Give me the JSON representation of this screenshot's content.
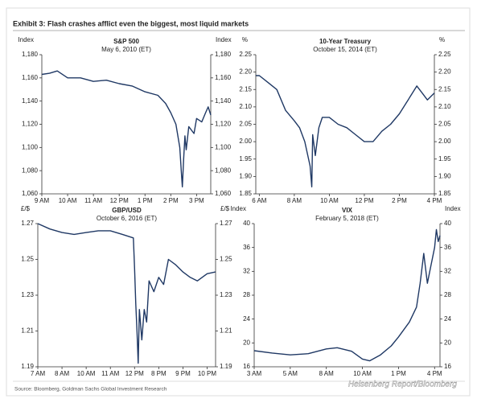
{
  "title": "Exhibit 3: Flash crashes afflict even the biggest, most liquid markets",
  "source": "Source: Bloomberg, Goldman Sachs Global Investment Research",
  "watermark": "Heisenberg Report/Bloomberg",
  "chart_data": [
    {
      "type": "line",
      "title": "S&P 500",
      "subtitle": "May 6, 2010 (ET)",
      "y_label": "Index",
      "color": "#1f3864",
      "x": [
        9,
        9.3,
        9.6,
        10,
        10.5,
        11,
        11.5,
        12,
        12.5,
        13,
        13.5,
        13.8,
        14,
        14.2,
        14.35,
        14.42,
        14.45,
        14.5,
        14.55,
        14.6,
        14.7,
        14.9,
        15,
        15.2,
        15.35,
        15.45,
        15.55
      ],
      "values": [
        1163,
        1164,
        1166,
        1160,
        1160,
        1157,
        1158,
        1155,
        1153,
        1148,
        1145,
        1138,
        1130,
        1120,
        1100,
        1075,
        1066,
        1090,
        1110,
        1098,
        1118,
        1112,
        1125,
        1122,
        1130,
        1135,
        1128
      ],
      "xlim": [
        9,
        15.55
      ],
      "xticks": [
        {
          "value": 9,
          "label": "9 AM"
        },
        {
          "value": 10,
          "label": "10 AM"
        },
        {
          "value": 11,
          "label": "11 AM"
        },
        {
          "value": 12,
          "label": "12 PM"
        },
        {
          "value": 13,
          "label": "1 PM"
        },
        {
          "value": 14,
          "label": "2 PM"
        },
        {
          "value": 15,
          "label": "3 PM"
        }
      ],
      "ylim": [
        1060,
        1180
      ],
      "yticks": [
        {
          "value": 1060,
          "label": "1,060"
        },
        {
          "value": 1080,
          "label": "1,080"
        },
        {
          "value": 1100,
          "label": "1,100"
        },
        {
          "value": 1120,
          "label": "1,120"
        },
        {
          "value": 1140,
          "label": "1,140"
        },
        {
          "value": 1160,
          "label": "1,160"
        },
        {
          "value": 1180,
          "label": "1,180"
        }
      ]
    },
    {
      "type": "line",
      "title": "10-Year Treasury",
      "subtitle": "October 15, 2014 (ET)",
      "y_label": "%",
      "color": "#1f3864",
      "x": [
        5.8,
        6,
        6.5,
        7,
        7.5,
        8,
        8.3,
        8.6,
        8.9,
        9.0,
        9.05,
        9.2,
        9.4,
        9.6,
        10,
        10.5,
        11,
        11.5,
        12,
        12.5,
        13,
        13.5,
        14,
        14.5,
        15,
        15.3,
        15.6,
        16
      ],
      "values": [
        2.19,
        2.19,
        2.17,
        2.15,
        2.09,
        2.06,
        2.04,
        2.0,
        1.93,
        1.87,
        2.02,
        1.96,
        2.04,
        2.07,
        2.07,
        2.05,
        2.04,
        2.02,
        2.0,
        2.0,
        2.03,
        2.05,
        2.08,
        2.12,
        2.16,
        2.14,
        2.12,
        2.14
      ],
      "xlim": [
        5.8,
        16
      ],
      "xticks": [
        {
          "value": 6,
          "label": "6 AM"
        },
        {
          "value": 8,
          "label": "8 AM"
        },
        {
          "value": 10,
          "label": "10 AM"
        },
        {
          "value": 12,
          "label": "12 PM"
        },
        {
          "value": 14,
          "label": "2 PM"
        },
        {
          "value": 16,
          "label": "4 PM"
        }
      ],
      "ylim": [
        1.85,
        2.25
      ],
      "yticks": [
        1.85,
        {
          "value": 1.9,
          "label": "1.90"
        },
        1.95,
        {
          "value": 2.0,
          "label": "2.00"
        },
        2.05,
        {
          "value": 2.1,
          "label": "2.10"
        },
        2.15,
        {
          "value": 2.2,
          "label": "2.20"
        },
        2.25
      ]
    },
    {
      "type": "line",
      "title": "GBP/USD",
      "subtitle": "October 6, 2016 (ET)",
      "y_label": "£/$",
      "color": "#1f3864",
      "x": [
        0,
        0.5,
        1,
        1.5,
        2,
        2.5,
        3,
        3.5,
        3.95,
        4.0,
        4.05,
        4.1,
        4.15,
        4.2,
        4.3,
        4.4,
        4.5,
        4.6,
        4.8,
        5.0,
        5.2,
        5.4,
        5.7,
        6.0,
        6.3,
        6.6,
        7.0,
        7.35
      ],
      "values": [
        1.27,
        1.267,
        1.265,
        1.264,
        1.265,
        1.266,
        1.266,
        1.264,
        1.262,
        1.245,
        1.225,
        1.21,
        1.192,
        1.222,
        1.205,
        1.222,
        1.215,
        1.238,
        1.232,
        1.24,
        1.236,
        1.25,
        1.247,
        1.243,
        1.24,
        1.238,
        1.242,
        1.243
      ],
      "xlim": [
        0,
        7.35
      ],
      "xticks": [
        {
          "value": 0,
          "label": "7 AM"
        },
        {
          "value": 1,
          "label": "8 AM"
        },
        {
          "value": 2,
          "label": "10 AM"
        },
        {
          "value": 3,
          "label": "11 AM"
        },
        {
          "value": 4,
          "label": "12 PM"
        },
        {
          "value": 5,
          "label": "8 PM"
        },
        {
          "value": 6,
          "label": "9 PM"
        },
        {
          "value": 7,
          "label": "10 PM"
        }
      ],
      "ylim": [
        1.19,
        1.27
      ],
      "yticks": [
        1.19,
        1.21,
        1.23,
        1.25,
        1.27
      ]
    },
    {
      "type": "line",
      "title": "VIX",
      "subtitle": "February 5, 2018 (ET)",
      "y_label": "Index",
      "color": "#1f3864",
      "x": [
        0,
        0.5,
        1,
        1.5,
        2,
        2.3,
        2.7,
        3,
        3.2,
        3.5,
        3.8,
        4,
        4.3,
        4.5,
        4.6,
        4.7,
        4.8,
        4.9,
        5.0,
        5.05,
        5.1,
        5.15
      ],
      "values": [
        18.7,
        18.3,
        18.0,
        18.2,
        19.0,
        19.2,
        18.6,
        17.3,
        17.0,
        18.0,
        19.5,
        21.0,
        23.5,
        26,
        30,
        35,
        30,
        33,
        36,
        39,
        37,
        38
      ],
      "xlim": [
        0,
        5.15
      ],
      "xticks": [
        {
          "value": 0,
          "label": "3 AM"
        },
        {
          "value": 1,
          "label": "5 AM"
        },
        {
          "value": 2,
          "label": "8 AM"
        },
        {
          "value": 3,
          "label": "10 AM"
        },
        {
          "value": 4,
          "label": "1 PM"
        },
        {
          "value": 5,
          "label": "4 PM"
        }
      ],
      "ylim": [
        16,
        40
      ],
      "yticks": [
        16,
        20,
        24,
        28,
        32,
        36,
        40
      ]
    }
  ]
}
